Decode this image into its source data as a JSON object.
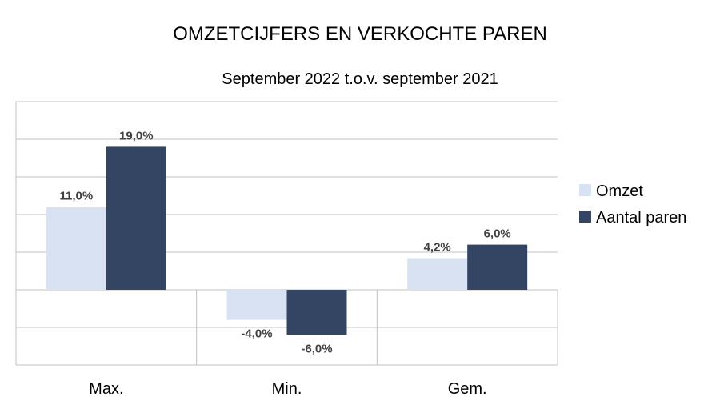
{
  "chart_data": {
    "type": "bar",
    "title": "OMZETCIJFERS EN VERKOCHTE PAREN",
    "subtitle": "September 2022 t.o.v. september 2021",
    "categories": [
      "Max.",
      "Min.",
      "Gem."
    ],
    "series": [
      {
        "name": "Omzet",
        "values": [
          11.0,
          -4.0,
          4.2
        ],
        "labels": [
          "11,0%",
          "-4,0%",
          "4,2%"
        ],
        "color": "#d9e2f3"
      },
      {
        "name": "Aantal paren",
        "values": [
          19.0,
          -6.0,
          6.0
        ],
        "labels": [
          "19,0%",
          "-6,0%",
          "6,0%"
        ],
        "color": "#344563"
      }
    ],
    "ylim": [
      -10,
      25
    ],
    "grid": true,
    "legend": "right"
  }
}
